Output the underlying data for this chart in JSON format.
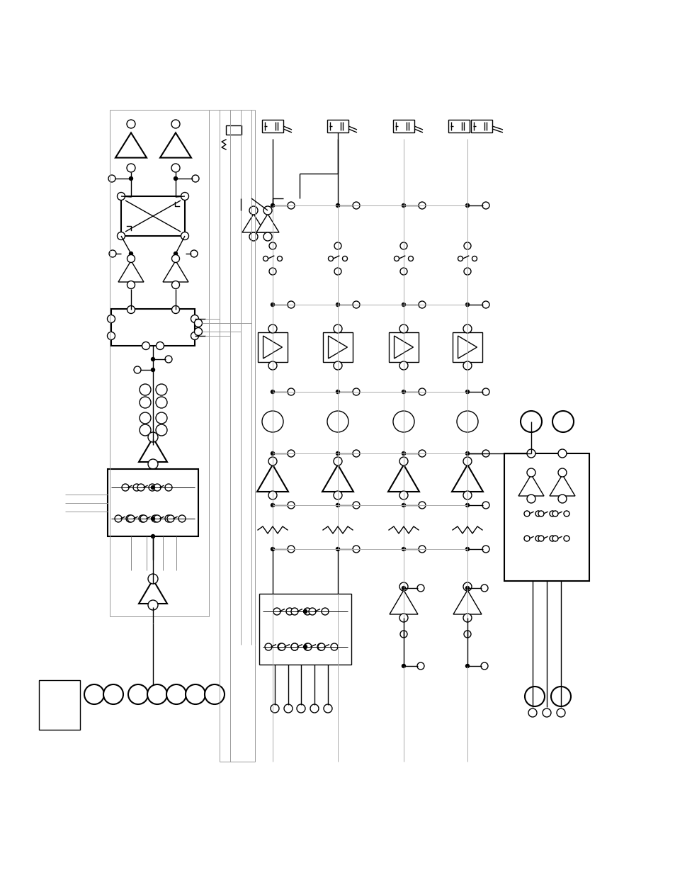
{
  "bg_color": "#ffffff",
  "line_color": "#000000",
  "lw": 1.0,
  "lw_thick": 1.5,
  "lw_thin": 0.7,
  "fig_width": 9.54,
  "fig_height": 12.35,
  "dpi": 100
}
